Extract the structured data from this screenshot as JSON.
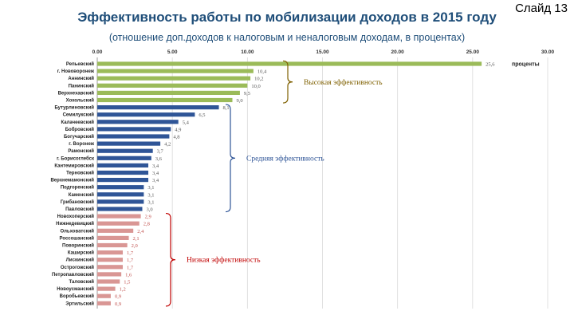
{
  "header": {
    "title": "Эффективность работы по мобилизации доходов в 2015 году",
    "subtitle": "(отношение доп.доходов к налоговым и неналоговым доходам, в процентах)",
    "slide_label": "Слайд 13"
  },
  "colors": {
    "high": "#9bbb59",
    "medium": "#2f5597",
    "low": "#d99694",
    "grid": "#d9d9d9"
  },
  "chart_data": {
    "type": "bar",
    "orientation": "horizontal",
    "xlim": [
      0,
      30
    ],
    "ticks": [
      "0.00",
      "5.00",
      "10.00",
      "15.00",
      "20.00",
      "25.00",
      "30.00"
    ],
    "grid": true,
    "series_label": "проценты",
    "categories": [
      "Репьевский",
      "г. Нововоронеж",
      "Аннинский",
      "Панинский",
      "Верхнехавский",
      "Хохольский",
      "Бутурлиновский",
      "Семилукский",
      "Калачеевский",
      "Бобровский",
      "Богучарский",
      "г. Воронеж",
      "Рамонский",
      "г. Борисоглебск",
      "Кантемировский",
      "Терновский",
      "Верхнемамонский",
      "Подгоренский",
      "Каменский",
      "Грибановский",
      "Павловский",
      "Новохоперский",
      "Нижнедевицкий",
      "Ольховатский",
      "Россошанский",
      "Поворинский",
      "Каширский",
      "Лискинский",
      "Острогожский",
      "Петропавловский",
      "Таловский",
      "Новоусманский",
      "Воробьевский",
      "Эртильский"
    ],
    "values": [
      25.6,
      10.4,
      10.2,
      10.0,
      9.5,
      9.0,
      8.1,
      6.5,
      5.4,
      4.9,
      4.8,
      4.2,
      3.7,
      3.6,
      3.4,
      3.4,
      3.4,
      3.1,
      3.1,
      3.1,
      3.0,
      2.9,
      2.8,
      2.4,
      2.1,
      2.0,
      1.7,
      1.7,
      1.7,
      1.6,
      1.5,
      1.2,
      0.9,
      0.9
    ],
    "value_labels": [
      "25,6",
      "10,4",
      "10,2",
      "10,0",
      "9,5",
      "9,0",
      "8,1",
      "6,5",
      "5,4",
      "4,9",
      "4,8",
      "4,2",
      "3,7",
      "3,6",
      "3,4",
      "3,4",
      "3,4",
      "3,1",
      "3,1",
      "3,1",
      "3,0",
      "2,9",
      "2,8",
      "2,4",
      "2,1",
      "2,0",
      "1,7",
      "1,7",
      "1,7",
      "1,6",
      "1,5",
      "1,2",
      "0,9",
      "0,9"
    ],
    "groups": [
      {
        "label": "Высокая эффективность",
        "from": 0,
        "to": 5,
        "color_key": "high"
      },
      {
        "label": "Средняя эффективность",
        "from": 6,
        "to": 20,
        "color_key": "medium"
      },
      {
        "label": "Низкая эффективность",
        "from": 21,
        "to": 33,
        "color_key": "low"
      }
    ]
  }
}
